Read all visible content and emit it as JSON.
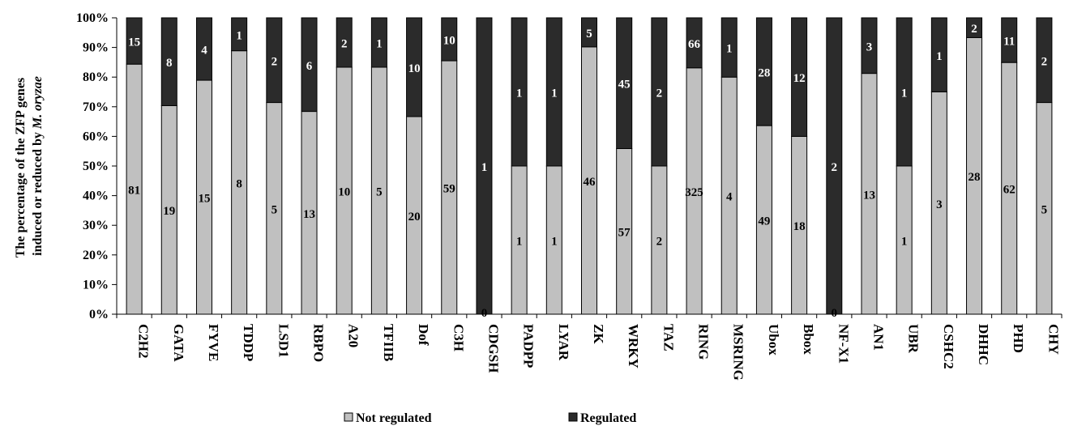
{
  "chart_data": {
    "type": "bar",
    "stacked": "percent",
    "categories": [
      "C2H2",
      "GATA",
      "FYVE",
      "TDDP",
      "LSD1",
      "RBPO",
      "A20",
      "TFIIB",
      "Dof",
      "C3H",
      "CDGSH",
      "PADPP",
      "LYAR",
      "ZK",
      "WRKY",
      "TAZ",
      "RING",
      "MSRING",
      "Ubox",
      "Bbox",
      "NF-X1",
      "AN1",
      "UBR",
      "CSHC2",
      "DHHC",
      "PHD",
      "CHY"
    ],
    "series": [
      {
        "name": "Not regulated",
        "color": "#c0c0c0",
        "values": [
          81,
          19,
          15,
          8,
          5,
          13,
          10,
          5,
          20,
          59,
          0,
          1,
          1,
          46,
          57,
          2,
          325,
          4,
          49,
          18,
          0,
          13,
          1,
          3,
          28,
          62,
          5
        ]
      },
      {
        "name": "Regulated",
        "color": "#2b2b2b",
        "values": [
          15,
          8,
          4,
          1,
          2,
          6,
          2,
          1,
          10,
          10,
          1,
          1,
          1,
          5,
          45,
          2,
          66,
          1,
          28,
          12,
          2,
          3,
          1,
          1,
          2,
          11,
          2
        ]
      }
    ],
    "ylabel_line1": "The percentage of the ZFP genes",
    "ylabel_line2_prefix": "induced or reduced by ",
    "ylabel_line2_italic": "M. oryzae",
    "yticks": [
      "0%",
      "10%",
      "20%",
      "30%",
      "40%",
      "50%",
      "60%",
      "70%",
      "80%",
      "90%",
      "100%"
    ],
    "ylim": [
      0,
      100
    ],
    "legend_position": "bottom"
  }
}
